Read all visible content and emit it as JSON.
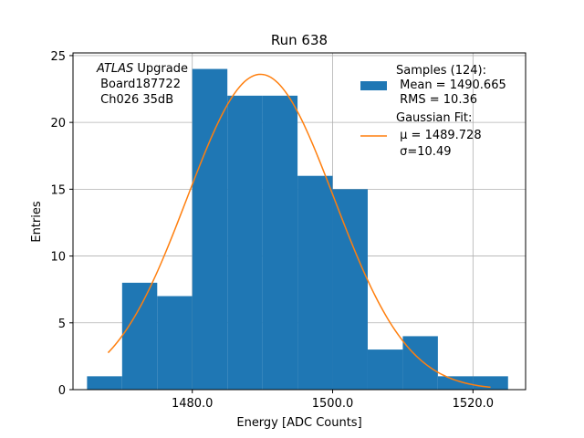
{
  "chart_data": {
    "type": "bar",
    "title": "Run 638",
    "xlabel": "Energy [ADC Counts]",
    "ylabel": "Entries",
    "xlim": [
      1463.0,
      1527.5
    ],
    "ylim": [
      0,
      25.2
    ],
    "xticks": [
      1480.0,
      1500.0,
      1520.0
    ],
    "xtick_labels": [
      "1480.0",
      "1500.0",
      "1520.0"
    ],
    "yticks": [
      0,
      5,
      10,
      15,
      20,
      25
    ],
    "ytick_labels": [
      "0",
      "5",
      "10",
      "15",
      "20",
      "25"
    ],
    "grid": true,
    "bin_edges": [
      1465,
      1470,
      1475,
      1480,
      1485,
      1490,
      1495,
      1500,
      1505,
      1510,
      1515,
      1520,
      1525
    ],
    "values": [
      1,
      8,
      7,
      24,
      22,
      22,
      16,
      15,
      3,
      4,
      1,
      1
    ],
    "series": [
      {
        "name": "Samples (124):",
        "type": "histogram",
        "color": "#1f77b4",
        "stats": [
          " Mean = 1490.665",
          " RMS = 10.36"
        ]
      },
      {
        "name": "Gaussian Fit:",
        "type": "line",
        "color": "#ff7f0e",
        "stats": [
          " $\\mu$ = 1489.728",
          " $\\sigma$=10.49"
        ],
        "fit": {
          "amplitude": 23.6,
          "mu": 1489.728,
          "sigma": 10.49,
          "x_range": [
            1468.0,
            1522.5
          ]
        }
      }
    ],
    "legend_placement": "top-right",
    "annotation": {
      "lines": [
        {
          "italic": "ATLAS",
          "text": " Upgrade"
        },
        {
          "text": " Board187722"
        },
        {
          "text": " Ch026 35dB"
        }
      ]
    }
  }
}
